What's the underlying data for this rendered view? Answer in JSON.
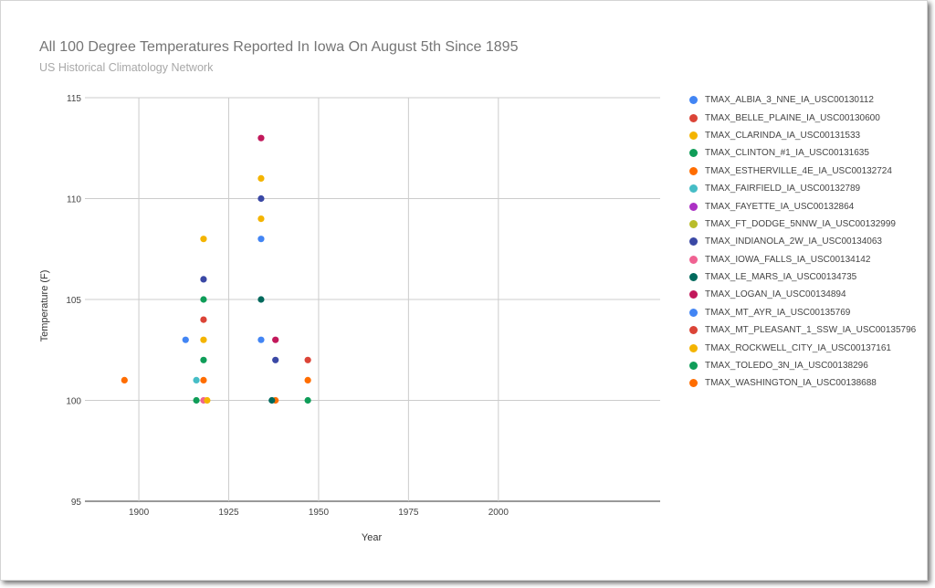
{
  "chart_data": {
    "type": "scatter",
    "title": "All 100 Degree Temperatures Reported In Iowa On August 5th Since 1895",
    "subtitle": "US Historical Climatology Network",
    "xlabel": "Year",
    "ylabel": "Temperature (F)",
    "xlim": [
      1885,
      2045
    ],
    "ylim": [
      95,
      115
    ],
    "x_ticks": [
      "1900",
      "1925",
      "1950",
      "1975",
      "2000"
    ],
    "x_tick_values": [
      1900,
      1925,
      1950,
      1975,
      2000
    ],
    "y_ticks": [
      "95",
      "100",
      "105",
      "110",
      "115"
    ],
    "y_tick_values": [
      95,
      100,
      105,
      110,
      115
    ],
    "grid": true,
    "legend_position": "right",
    "series": [
      {
        "name": "TMAX_ALBIA_3_NNE_IA_USC00130112",
        "color": "#4285f4",
        "points": [
          [
            1913,
            103
          ]
        ]
      },
      {
        "name": "TMAX_BELLE_PLAINE_IA_USC00130600",
        "color": "#db4437",
        "points": [
          [
            1918,
            104
          ]
        ]
      },
      {
        "name": "TMAX_CLARINDA_IA_USC00131533",
        "color": "#f4b400",
        "points": [
          [
            1918,
            103
          ],
          [
            1934,
            111
          ]
        ]
      },
      {
        "name": "TMAX_CLINTON_#1_IA_USC00131635",
        "color": "#0f9d58",
        "points": [
          [
            1918,
            102
          ]
        ]
      },
      {
        "name": "TMAX_ESTHERVILLE_4E_IA_USC00132724",
        "color": "#ff6d00",
        "points": [
          [
            1918,
            101
          ],
          [
            1938,
            100
          ]
        ]
      },
      {
        "name": "TMAX_FAIRFIELD_IA_USC00132789",
        "color": "#46bdc6",
        "points": [
          [
            1916,
            101
          ]
        ]
      },
      {
        "name": "TMAX_FAYETTE_IA_USC00132864",
        "color": "#ab30c4",
        "points": []
      },
      {
        "name": "TMAX_FT_DODGE_5NNW_IA_USC00132999",
        "color": "#b9bd2a",
        "points": []
      },
      {
        "name": "TMAX_INDIANOLA_2W_IA_USC00134063",
        "color": "#3a48a5",
        "points": [
          [
            1918,
            106
          ],
          [
            1934,
            110
          ],
          [
            1938,
            102
          ]
        ]
      },
      {
        "name": "TMAX_IOWA_FALLS_IA_USC00134142",
        "color": "#f06292",
        "points": [
          [
            1918,
            100
          ]
        ]
      },
      {
        "name": "TMAX_LE_MARS_IA_USC00134735",
        "color": "#00695c",
        "points": [
          [
            1934,
            105
          ],
          [
            1937,
            100
          ]
        ]
      },
      {
        "name": "TMAX_LOGAN_IA_USC00134894",
        "color": "#c2185b",
        "points": [
          [
            1934,
            113
          ],
          [
            1938,
            103
          ]
        ]
      },
      {
        "name": "TMAX_MT_AYR_IA_USC00135769",
        "color": "#4285f4",
        "points": [
          [
            1934,
            108
          ],
          [
            1934,
            103
          ]
        ]
      },
      {
        "name": "TMAX_MT_PLEASANT_1_SSW_IA_USC00135796",
        "color": "#db4437",
        "points": [
          [
            1947,
            102
          ]
        ]
      },
      {
        "name": "TMAX_ROCKWELL_CITY_IA_USC00137161",
        "color": "#f4b400",
        "points": [
          [
            1918,
            108
          ],
          [
            1934,
            109
          ],
          [
            1919,
            100
          ]
        ]
      },
      {
        "name": "TMAX_TOLEDO_3N_IA_USC00138296",
        "color": "#0f9d58",
        "points": [
          [
            1918,
            105
          ],
          [
            1916,
            100
          ],
          [
            1947,
            100
          ]
        ]
      },
      {
        "name": "TMAX_WASHINGTON_IA_USC00138688",
        "color": "#ff6d00",
        "points": [
          [
            1896,
            101
          ],
          [
            1947,
            101
          ]
        ]
      }
    ]
  }
}
